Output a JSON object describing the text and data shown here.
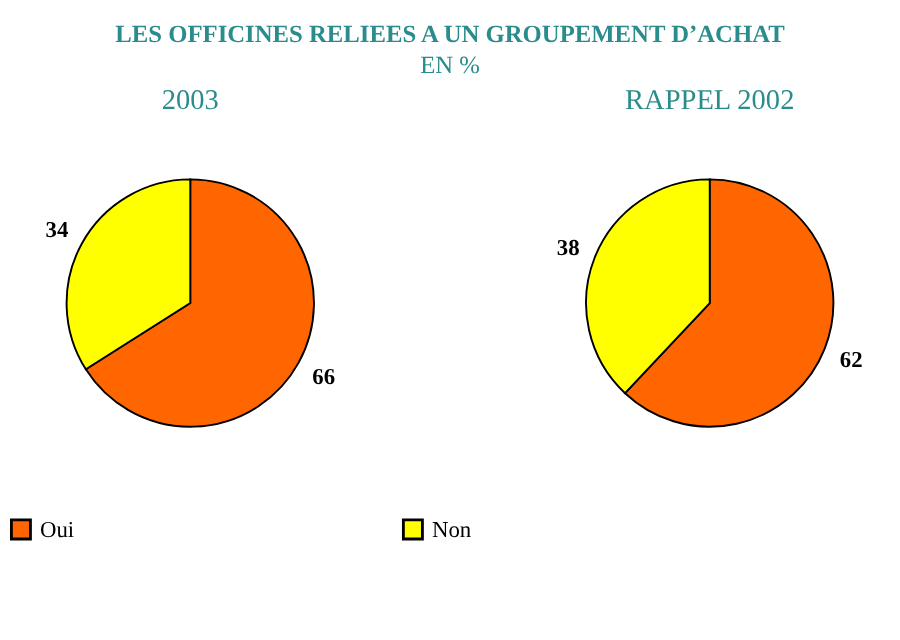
{
  "chart_data": [
    {
      "type": "pie",
      "title": "2003",
      "categories": [
        "Oui",
        "Non"
      ],
      "values": [
        66,
        34
      ],
      "colors": [
        "#ff6600",
        "#ffff00"
      ],
      "data_labels": true,
      "legend": "bottom",
      "annotations": [
        "LES OFFICINES RELIEES A UN GROUPEMENT D’ACHAT",
        "EN %"
      ]
    },
    {
      "type": "pie",
      "title": "RAPPEL 2002",
      "categories": [
        null,
        null
      ],
      "values": [
        62,
        38
      ],
      "colors": [
        "#ff6600",
        "#ffff00"
      ],
      "data_labels": true
    }
  ]
}
